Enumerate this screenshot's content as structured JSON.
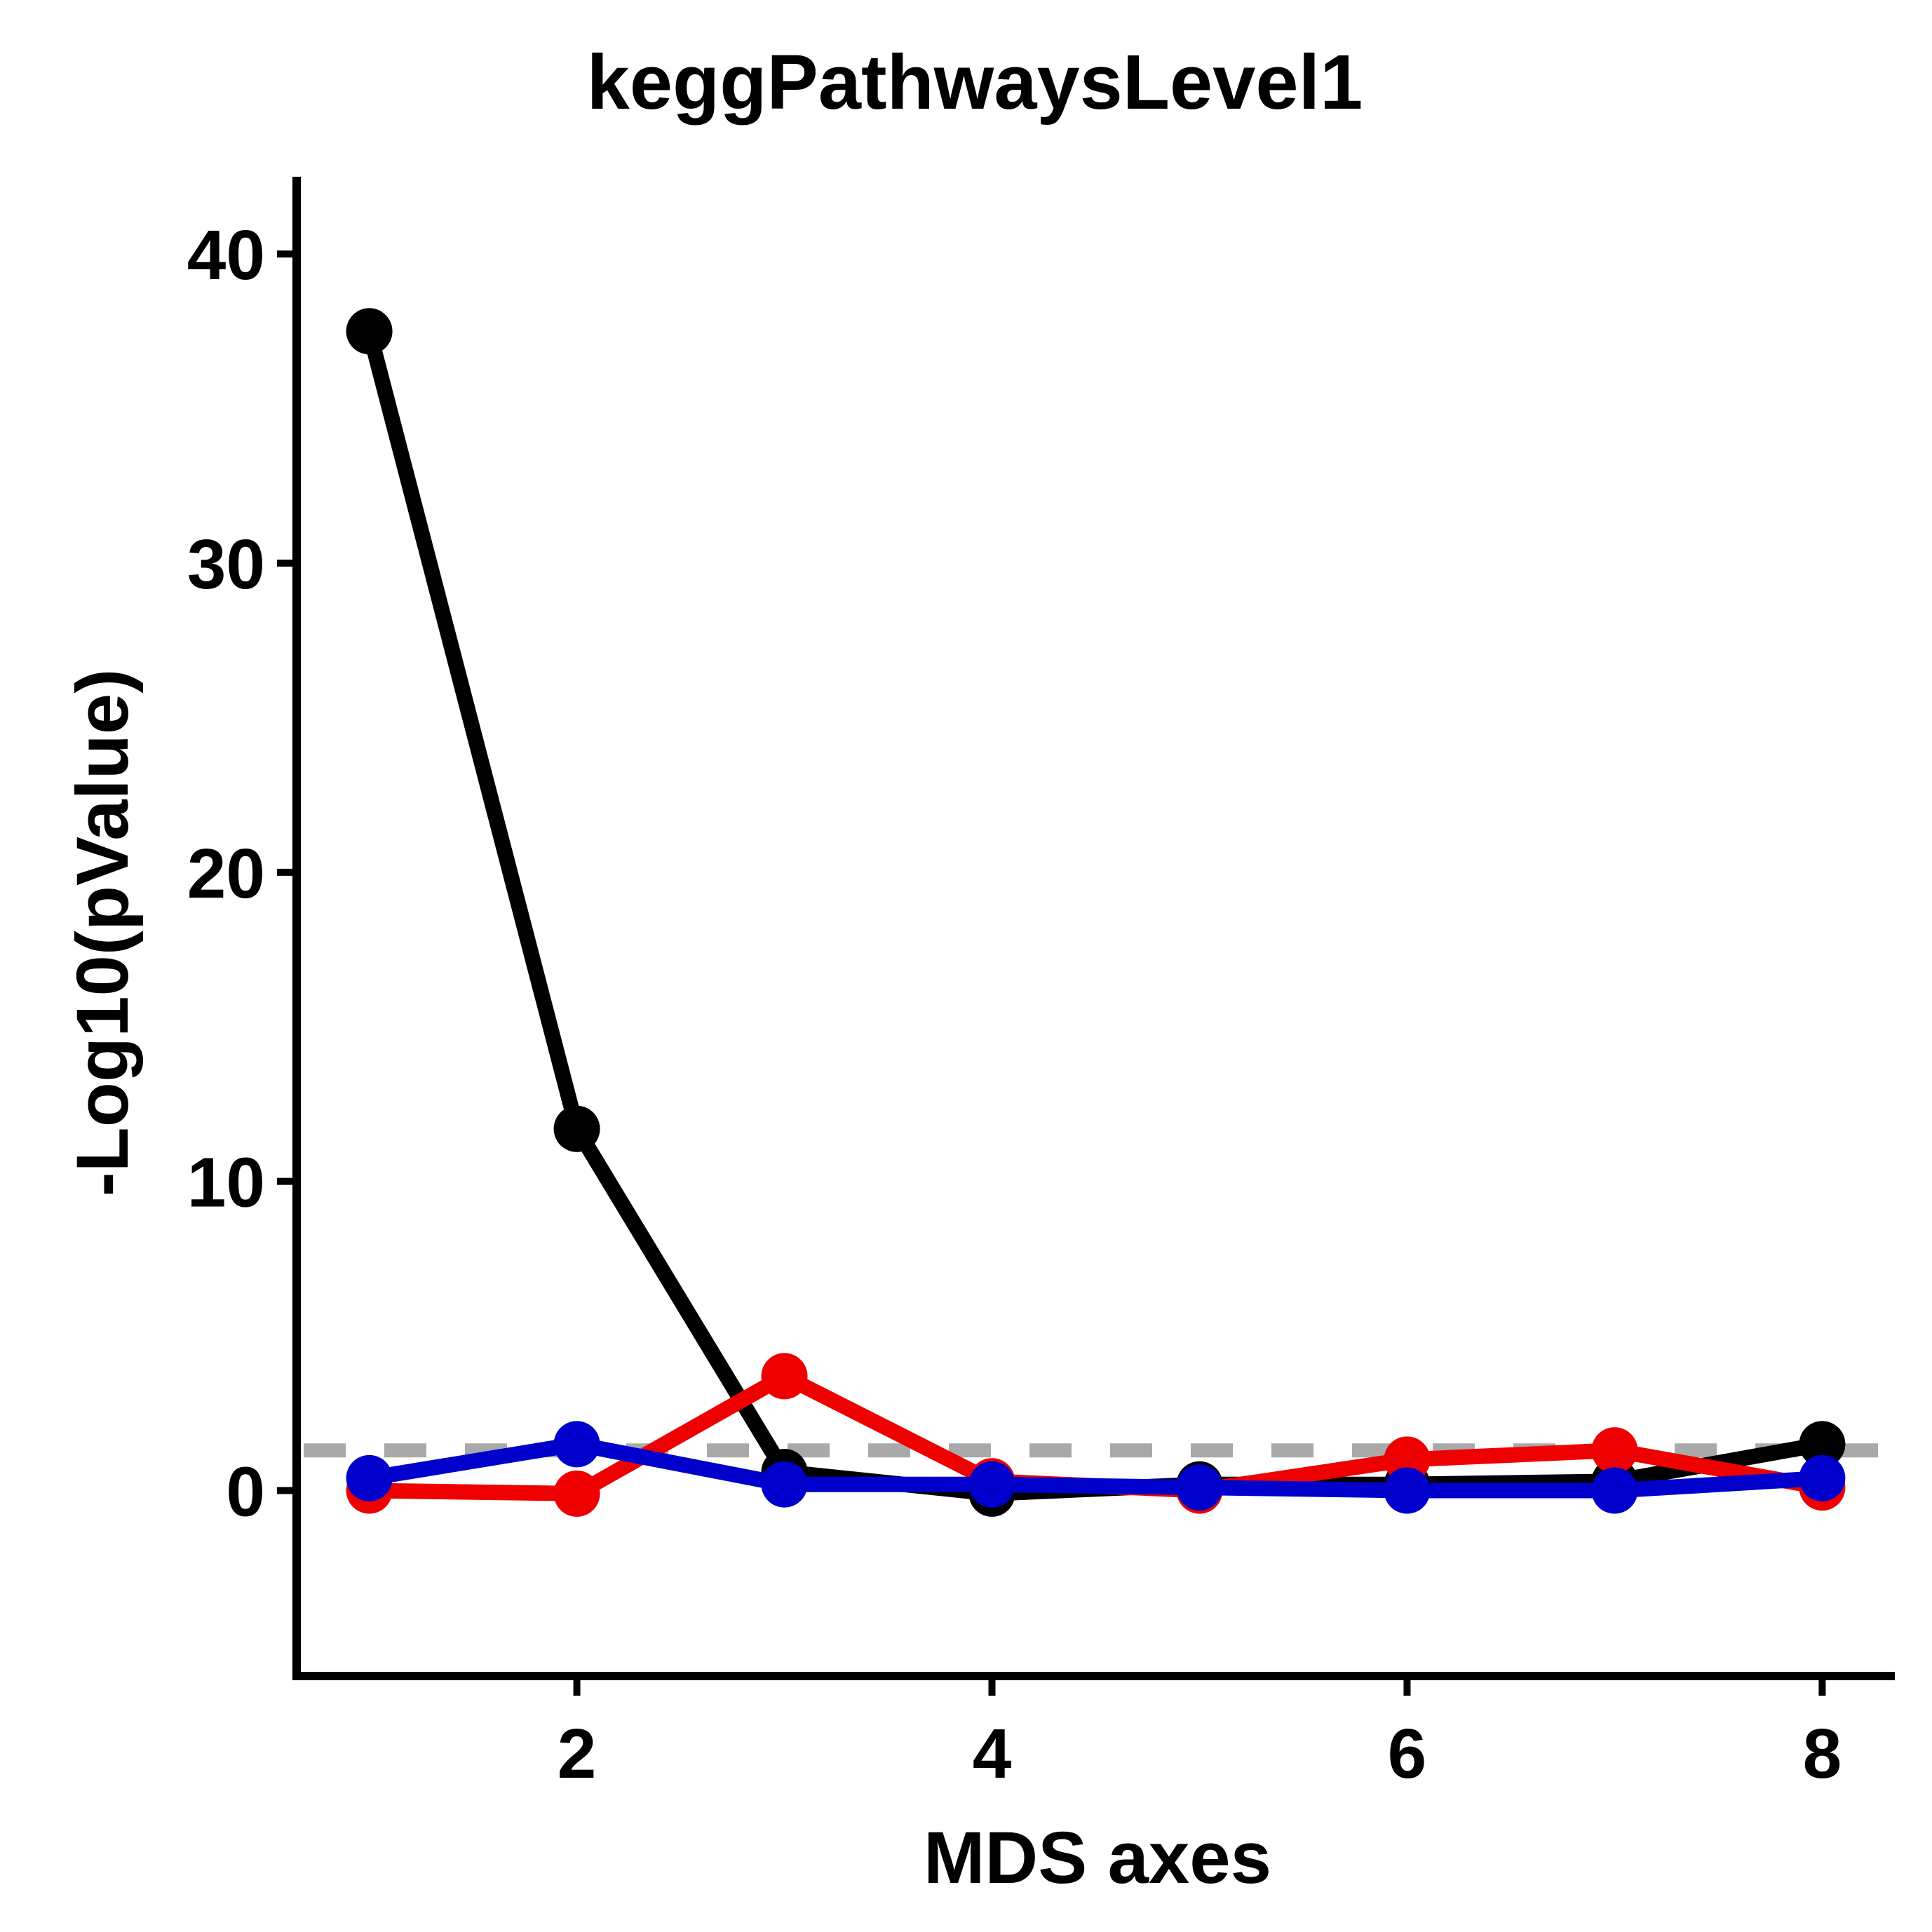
{
  "chart_data": {
    "type": "line",
    "title": "keggPathwaysLevel1",
    "xlabel": "MDS axes",
    "ylabel": "-Log10(pValue)",
    "xlim": [
      0.65,
      8.35
    ],
    "ylim": [
      -6,
      42.5
    ],
    "x_ticks": [
      2,
      4,
      6,
      8
    ],
    "y_ticks": [
      0,
      10,
      20,
      30,
      40
    ],
    "threshold": 1.3,
    "threshold_color": "#a9a9a9",
    "legend": "none",
    "grid": false,
    "x": [
      1,
      2,
      3,
      4,
      5,
      6,
      7,
      8
    ],
    "series": [
      {
        "color": "#000000",
        "values": [
          37.5,
          11.7,
          0.6,
          -0.1,
          0.2,
          0.2,
          0.3,
          1.5
        ]
      },
      {
        "color": "#ee0000",
        "values": [
          0.0,
          -0.1,
          3.7,
          0.3,
          0.0,
          1.0,
          1.3,
          0.1
        ]
      },
      {
        "color": "#0000cc",
        "values": [
          0.4,
          1.5,
          0.2,
          0.2,
          0.1,
          0.0,
          0.0,
          0.4
        ]
      }
    ]
  }
}
